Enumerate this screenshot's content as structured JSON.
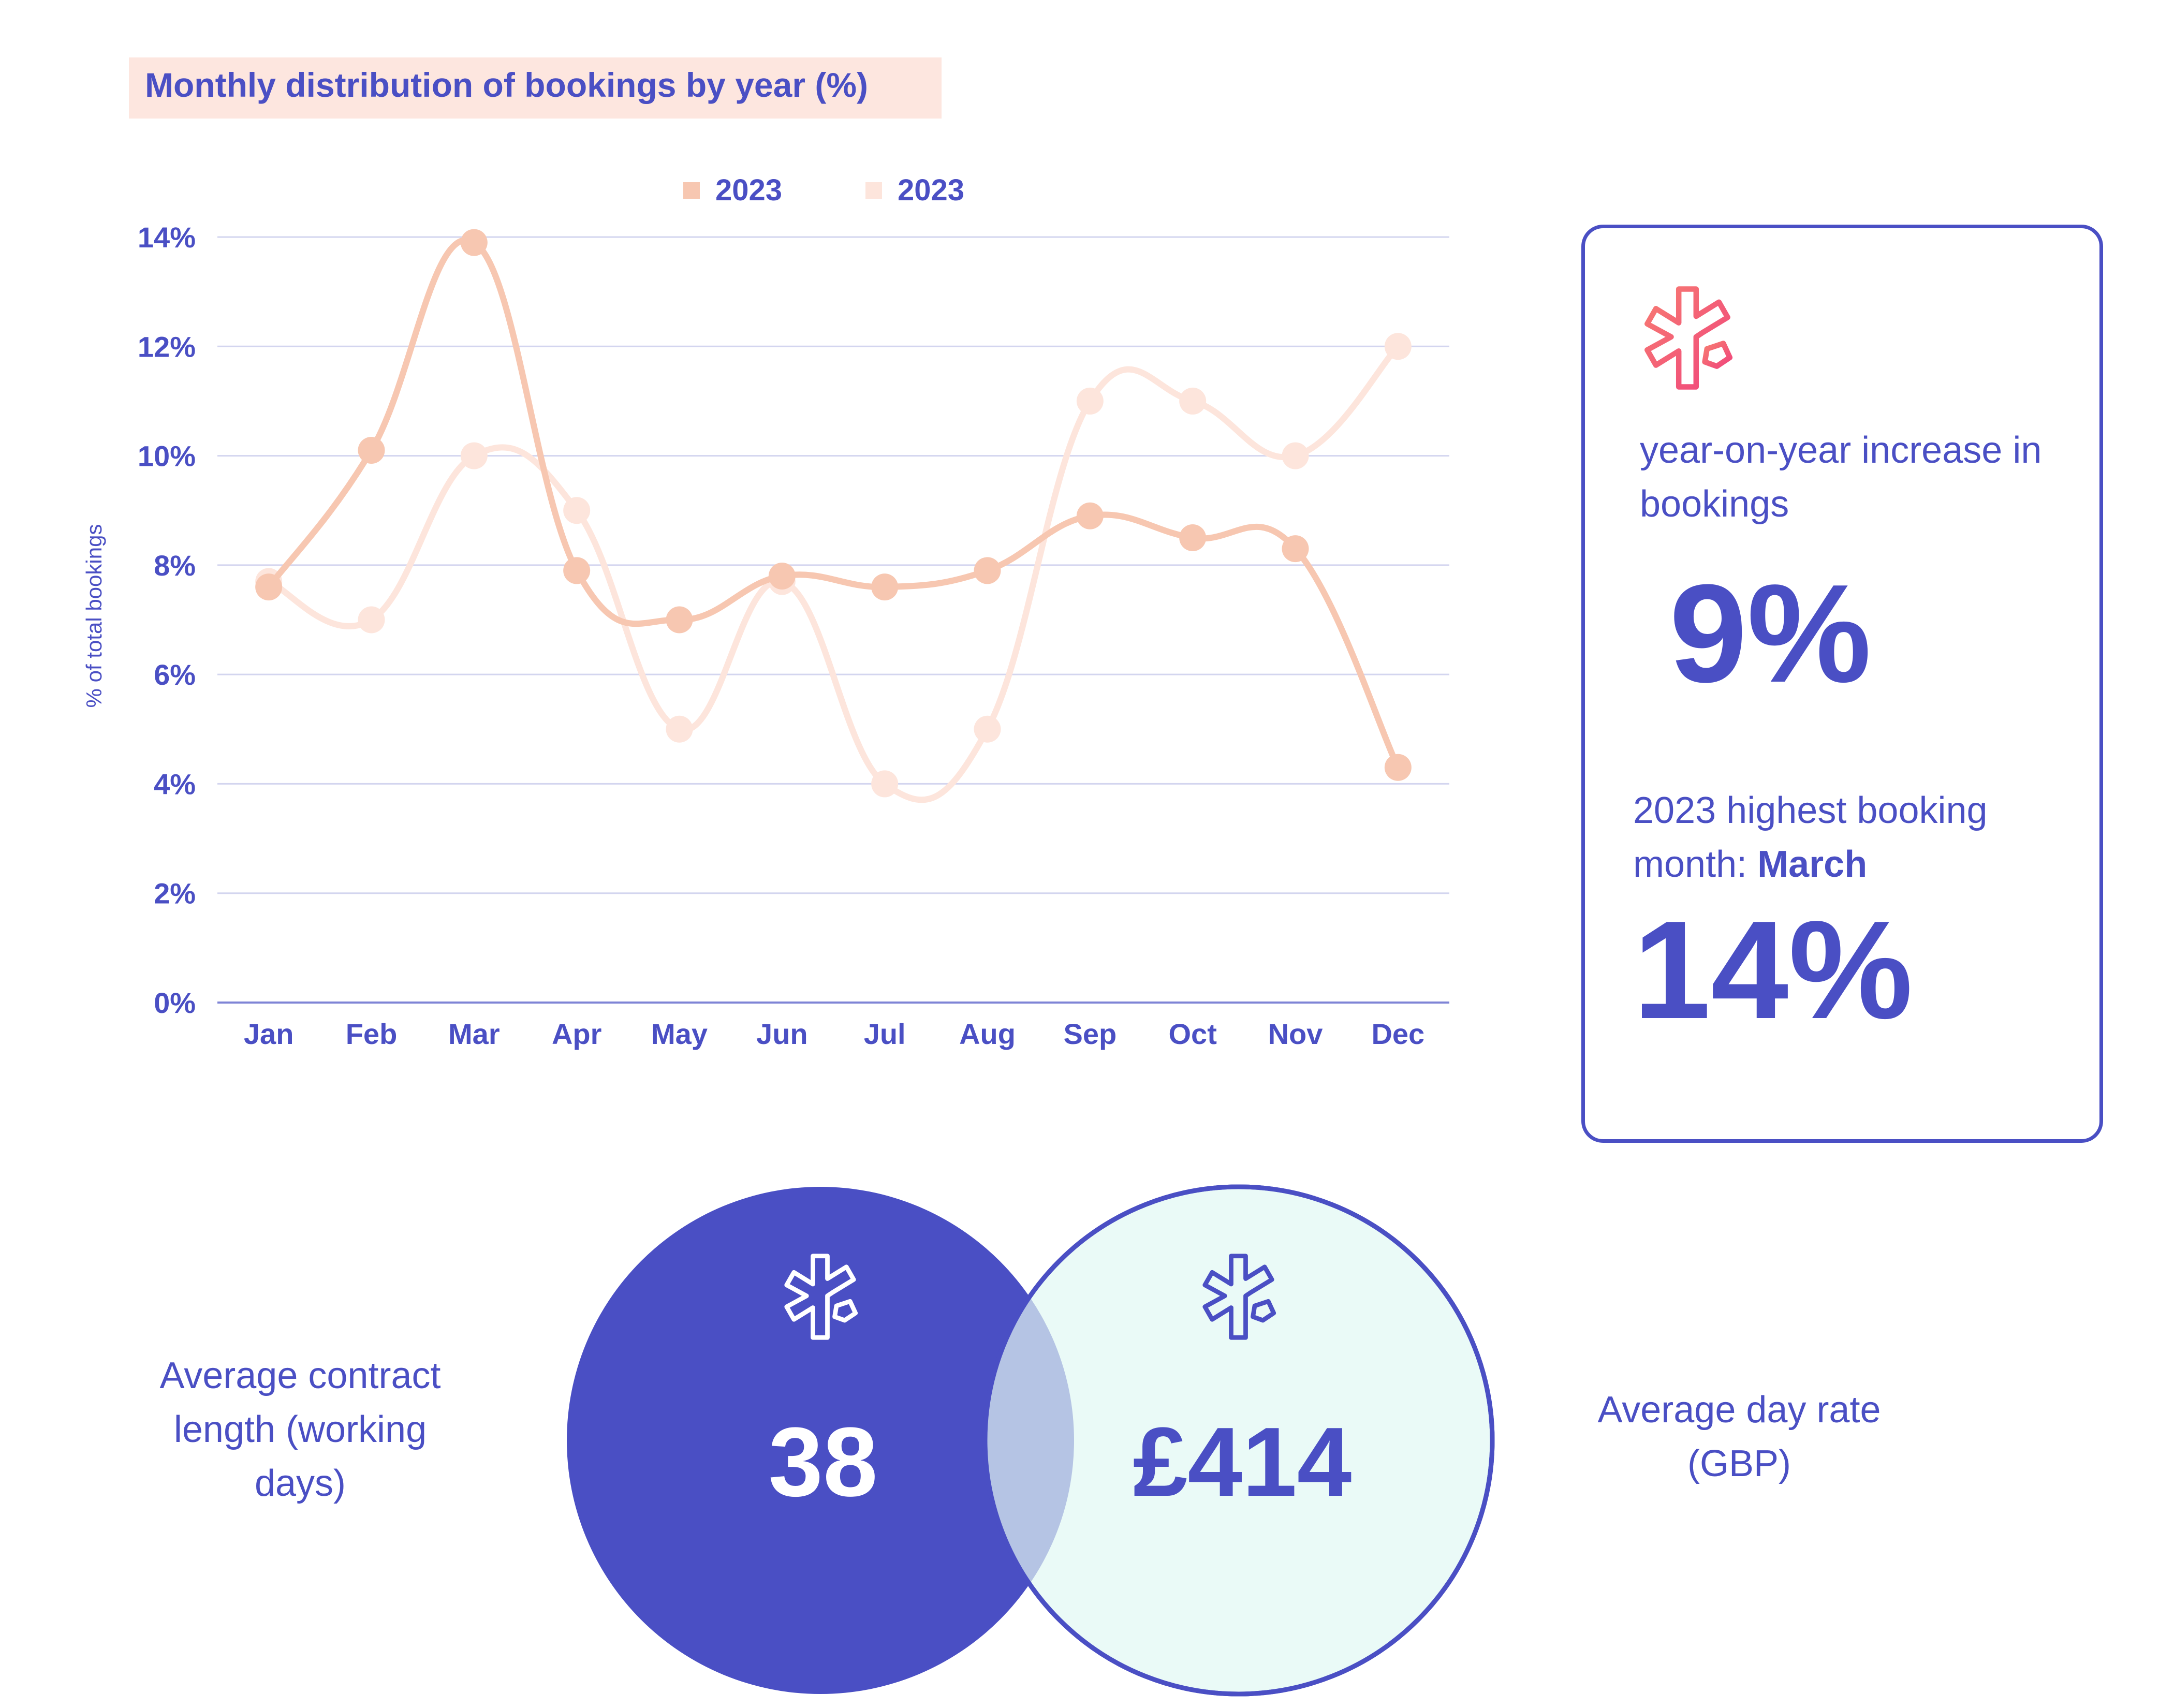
{
  "title": "Monthly distribution of bookings by year (%)",
  "colors": {
    "accent": "#4a4fc4",
    "series_a": "#f7c7b1",
    "series_b": "#fde5dc",
    "title_bg": "#fde6df",
    "venn_left_fill": "#4a4fc4",
    "venn_right_fill": "#eafaf7",
    "venn_overlap": "#b5c4e4",
    "icon_gradient": [
      "#f77b72",
      "#f0457c"
    ]
  },
  "chart_data": {
    "type": "line",
    "categories": [
      "Jan",
      "Feb",
      "Mar",
      "Apr",
      "May",
      "Jun",
      "Jul",
      "Aug",
      "Sep",
      "Oct",
      "Nov",
      "Dec"
    ],
    "series": [
      {
        "name": "2023",
        "color": "#f7c7b1",
        "values": [
          7.6,
          10.1,
          13.9,
          7.9,
          7.0,
          7.8,
          7.6,
          7.9,
          8.9,
          8.5,
          8.3,
          4.3
        ]
      },
      {
        "name": "2023",
        "color": "#fde5dc",
        "values": [
          7.7,
          7.0,
          10.0,
          9.0,
          5.0,
          7.7,
          4.0,
          5.0,
          11.0,
          11.0,
          10.0,
          12.0
        ]
      }
    ],
    "yticks": [
      "0%",
      "2%",
      "4%",
      "6%",
      "8%",
      "10%",
      "12%",
      "14%"
    ],
    "ylim": [
      0,
      14
    ],
    "ylabel": "% of total bookings",
    "xlabel": "",
    "grid": true,
    "legend_position": "top-center",
    "markers": true,
    "smooth": true
  },
  "stats": {
    "icon": "asterisk-medical-icon",
    "yoy_label": "year-on-year increase in bookings",
    "yoy_value": "9%",
    "highest_label_prefix": "2023 highest booking month: ",
    "highest_month": "March",
    "highest_value": "14%"
  },
  "venn": {
    "left": {
      "label": "Average contract length (working days)",
      "value": "38",
      "icon": "asterisk-medical-icon"
    },
    "right": {
      "label": "Average day rate (GBP)",
      "value": "£414",
      "icon": "asterisk-medical-icon"
    }
  }
}
